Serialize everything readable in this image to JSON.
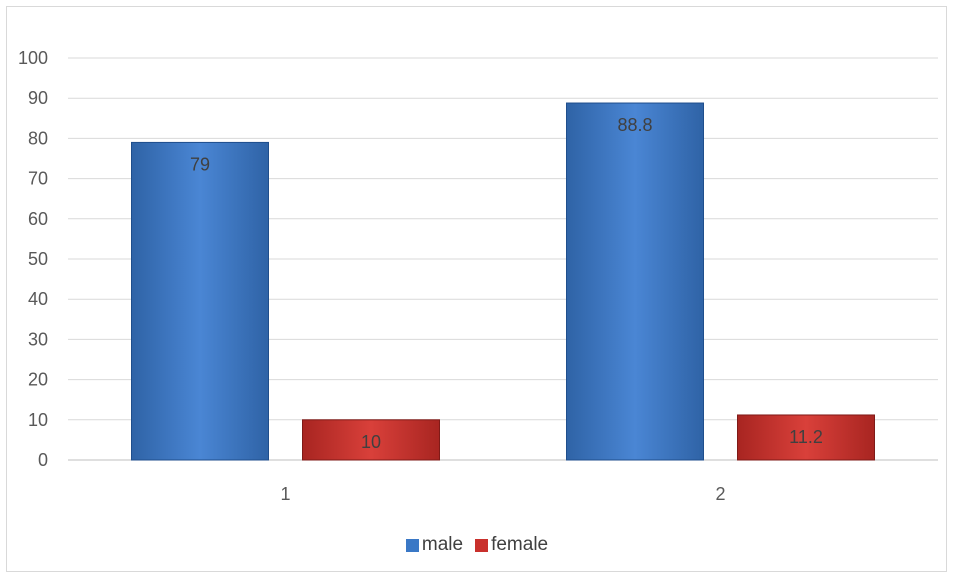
{
  "chart_data": {
    "type": "bar",
    "categories": [
      "1",
      "2"
    ],
    "series": [
      {
        "name": "male",
        "values": [
          79,
          88.8
        ],
        "color": "#3a78c6",
        "edge": "#1f4e8c"
      },
      {
        "name": "female",
        "values": [
          10,
          11.2
        ],
        "color": "#c9302c",
        "edge": "#7f1a17"
      }
    ],
    "ylim": [
      0,
      100
    ],
    "yticks": [
      0,
      10,
      20,
      30,
      40,
      50,
      60,
      70,
      80,
      90,
      100
    ],
    "grid": true,
    "legend_position": "bottom",
    "data_labels": true
  }
}
